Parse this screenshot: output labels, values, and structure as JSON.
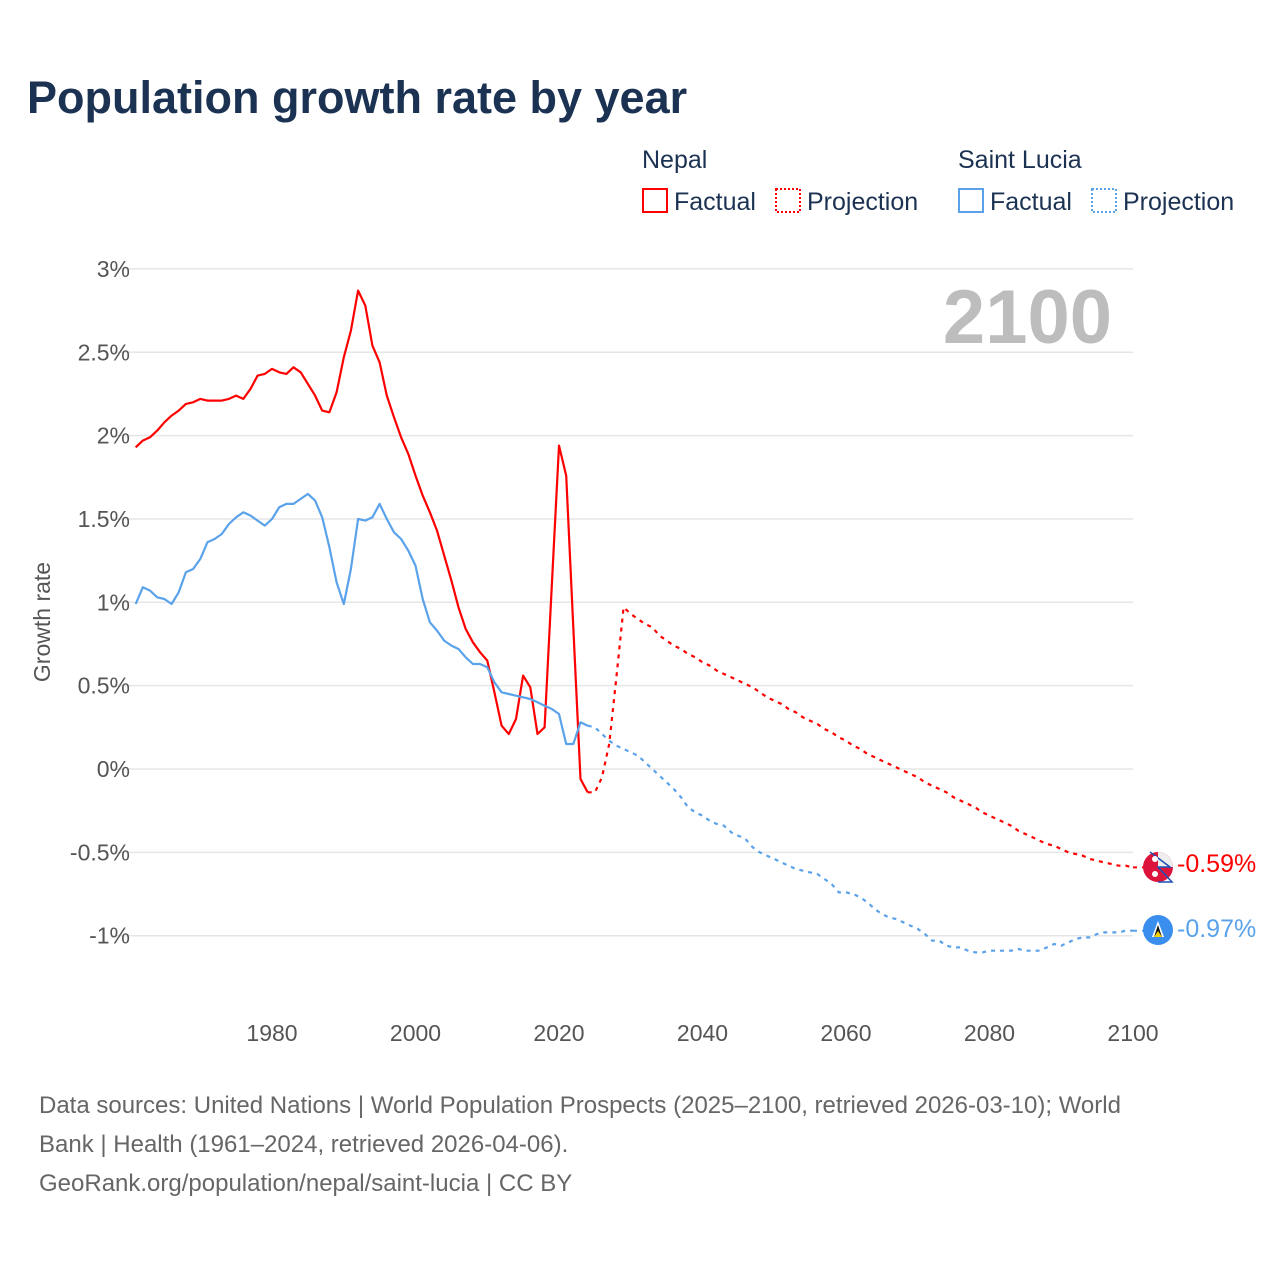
{
  "chart_data": {
    "type": "line",
    "title": "Population growth rate by year",
    "ylabel": "Growth rate",
    "xlabel": "",
    "xlim": [
      1961,
      2100
    ],
    "ylim": [
      -1.4,
      3.0
    ],
    "x_ticks": [
      1980,
      2000,
      2020,
      2040,
      2060,
      2080,
      2100
    ],
    "y_ticks": [
      3,
      2.5,
      2,
      1.5,
      1,
      0.5,
      0,
      -0.5,
      -1
    ],
    "y_tick_labels": [
      "3%",
      "2.5%",
      "2%",
      "1.5%",
      "1%",
      "0.5%",
      "0%",
      "-0.5%",
      "-1%"
    ],
    "x_tick_labels": [
      "1980",
      "2000",
      "2020",
      "2040",
      "2060",
      "2080",
      "2100"
    ],
    "grid": true,
    "legend_position": "top-right",
    "current_year": "2100",
    "series": [
      {
        "name": "Nepal",
        "color": "#ff0000",
        "flag_icon": "nepal-flag-icon",
        "end_label": "-0.59%",
        "factual_label": "Factual",
        "projection_label": "Projection",
        "factual_start": 1961,
        "factual": [
          1.93,
          1.97,
          1.99,
          2.03,
          2.08,
          2.12,
          2.15,
          2.19,
          2.2,
          2.22,
          2.21,
          2.21,
          2.21,
          2.22,
          2.24,
          2.22,
          2.28,
          2.36,
          2.37,
          2.4,
          2.38,
          2.37,
          2.41,
          2.38,
          2.31,
          2.24,
          2.15,
          2.14,
          2.26,
          2.47,
          2.63,
          2.87,
          2.78,
          2.54,
          2.44,
          2.24,
          2.11,
          1.99,
          1.89,
          1.76,
          1.64,
          1.54,
          1.43,
          1.28,
          1.13,
          0.97,
          0.84,
          0.76,
          0.7,
          0.65,
          0.46,
          0.26,
          0.21,
          0.3,
          0.56,
          0.49,
          0.21,
          0.25,
          1.1,
          1.94,
          1.76,
          0.85,
          -0.06,
          -0.14
        ],
        "projection_start": 2024,
        "projection": [
          -0.14,
          -0.14,
          -0.05,
          0.15,
          0.55,
          0.97,
          0.93,
          0.9,
          0.87,
          0.85,
          0.8,
          0.77,
          0.74,
          0.72,
          0.69,
          0.67,
          0.64,
          0.62,
          0.59,
          0.57,
          0.55,
          0.53,
          0.51,
          0.49,
          0.46,
          0.43,
          0.41,
          0.39,
          0.36,
          0.34,
          0.31,
          0.29,
          0.27,
          0.24,
          0.22,
          0.19,
          0.17,
          0.14,
          0.12,
          0.09,
          0.07,
          0.05,
          0.03,
          0.01,
          -0.01,
          -0.03,
          -0.05,
          -0.08,
          -0.1,
          -0.12,
          -0.14,
          -0.17,
          -0.19,
          -0.21,
          -0.23,
          -0.26,
          -0.28,
          -0.3,
          -0.32,
          -0.34,
          -0.37,
          -0.39,
          -0.41,
          -0.43,
          -0.45,
          -0.46,
          -0.48,
          -0.5,
          -0.51,
          -0.52,
          -0.54,
          -0.55,
          -0.56,
          -0.57,
          -0.58,
          -0.58,
          -0.59
        ]
      },
      {
        "name": "Saint Lucia",
        "color": "#5aa2ea",
        "flag_icon": "saint-lucia-flag-icon",
        "end_label": "-0.97%",
        "factual_label": "Factual",
        "projection_label": "Projection",
        "factual_start": 1961,
        "factual": [
          0.99,
          1.09,
          1.07,
          1.03,
          1.02,
          0.99,
          1.06,
          1.18,
          1.2,
          1.26,
          1.36,
          1.38,
          1.41,
          1.47,
          1.51,
          1.54,
          1.52,
          1.49,
          1.46,
          1.5,
          1.57,
          1.59,
          1.59,
          1.62,
          1.65,
          1.61,
          1.51,
          1.33,
          1.12,
          0.99,
          1.2,
          1.5,
          1.49,
          1.51,
          1.59,
          1.5,
          1.42,
          1.38,
          1.31,
          1.22,
          1.02,
          0.88,
          0.83,
          0.77,
          0.74,
          0.72,
          0.67,
          0.63,
          0.63,
          0.61,
          0.52,
          0.46,
          0.45,
          0.44,
          0.43,
          0.42,
          0.4,
          0.38,
          0.36,
          0.33,
          0.15,
          0.15,
          0.28,
          0.26
        ],
        "projection_start": 2024,
        "projection": [
          0.26,
          0.25,
          0.21,
          0.17,
          0.14,
          0.12,
          0.1,
          0.08,
          0.04,
          0.0,
          -0.04,
          -0.08,
          -0.12,
          -0.17,
          -0.23,
          -0.26,
          -0.28,
          -0.31,
          -0.33,
          -0.34,
          -0.38,
          -0.4,
          -0.42,
          -0.47,
          -0.5,
          -0.52,
          -0.54,
          -0.56,
          -0.58,
          -0.6,
          -0.61,
          -0.62,
          -0.63,
          -0.66,
          -0.69,
          -0.74,
          -0.74,
          -0.75,
          -0.77,
          -0.8,
          -0.84,
          -0.87,
          -0.89,
          -0.9,
          -0.92,
          -0.94,
          -0.96,
          -0.99,
          -1.03,
          -1.03,
          -1.06,
          -1.07,
          -1.07,
          -1.09,
          -1.1,
          -1.1,
          -1.09,
          -1.09,
          -1.09,
          -1.09,
          -1.08,
          -1.09,
          -1.09,
          -1.09,
          -1.07,
          -1.05,
          -1.06,
          -1.04,
          -1.02,
          -1.01,
          -1.01,
          -0.99,
          -0.98,
          -0.98,
          -0.98,
          -0.97,
          -0.97
        ]
      }
    ]
  },
  "footer": {
    "source_line1": "Data sources: United Nations | World Population Prospects (2025–2100, retrieved 2026-03-10); World",
    "source_line2": "Bank | Health (1961–2024, retrieved 2026-04-06).",
    "attribution": "GeoRank.org/population/nepal/saint-lucia | CC BY"
  }
}
